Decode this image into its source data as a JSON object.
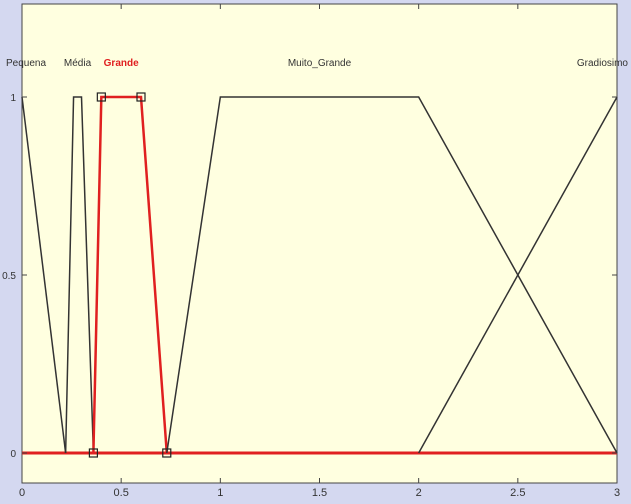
{
  "colors": {
    "background": "#d4d8f0",
    "plot_area": "#ffffe0",
    "axis": "#444444",
    "default_line": "#333333",
    "selected_line": "#e02020",
    "grid": "#e8e8c8"
  },
  "chart_data": {
    "type": "line",
    "title": "",
    "xlabel": "",
    "ylabel": "",
    "xlim": [
      0,
      3
    ],
    "ylim": [
      0,
      1
    ],
    "x_ticks": [
      {
        "value": 0,
        "label": "0"
      },
      {
        "value": 0.5,
        "label": "0.5"
      },
      {
        "value": 1,
        "label": "1"
      },
      {
        "value": 1.5,
        "label": "1.5"
      },
      {
        "value": 2,
        "label": "2"
      },
      {
        "value": 2.5,
        "label": "2.5"
      },
      {
        "value": 3,
        "label": "3"
      }
    ],
    "y_ticks": [
      {
        "value": 0,
        "label": "0"
      },
      {
        "value": 0.5,
        "label": "0.5"
      },
      {
        "value": 1,
        "label": "1"
      }
    ],
    "grid": false,
    "legend": "none",
    "baseline": {
      "from": 0,
      "to": 3,
      "color": "#e02020"
    },
    "series": [
      {
        "name": "Pequena",
        "selected": false,
        "label_x": 0,
        "points": [
          [
            0,
            1
          ],
          [
            0.22,
            0
          ]
        ]
      },
      {
        "name": "Média",
        "selected": false,
        "label_x": 0.28,
        "points": [
          [
            0.22,
            0
          ],
          [
            0.26,
            1
          ],
          [
            0.3,
            1
          ],
          [
            0.36,
            0
          ]
        ]
      },
      {
        "name": "Grande",
        "selected": true,
        "label_x": 0.5,
        "points": [
          [
            0.36,
            0
          ],
          [
            0.4,
            1
          ],
          [
            0.6,
            1
          ],
          [
            0.73,
            0
          ]
        ]
      },
      {
        "name": "Muito_Grande",
        "selected": false,
        "label_x": 1.5,
        "points": [
          [
            0.73,
            0
          ],
          [
            1,
            1
          ],
          [
            2,
            1
          ],
          [
            3,
            0
          ]
        ]
      },
      {
        "name": "Gradiosimo",
        "selected": false,
        "label_x": 3,
        "points": [
          [
            2,
            0
          ],
          [
            3,
            1
          ]
        ]
      }
    ]
  }
}
